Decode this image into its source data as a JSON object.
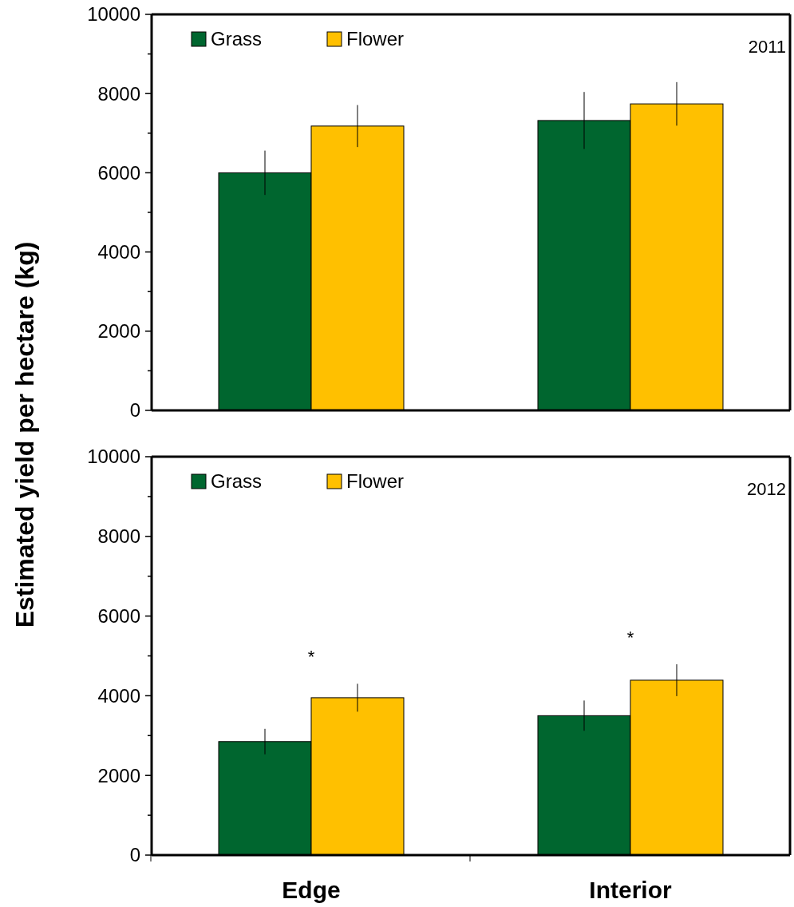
{
  "chart_data": [
    {
      "type": "bar",
      "ylabel": "Estimated yield per hectare (kg)",
      "categories": [
        null,
        null
      ],
      "series": [
        {
          "name": "Grass",
          "color": "#00662f",
          "values": [
            6000,
            7320
          ],
          "errors": [
            560,
            720
          ]
        },
        {
          "name": "Flower",
          "color": "#ffc000",
          "values": [
            7180,
            7740
          ],
          "errors": [
            530,
            550
          ]
        }
      ],
      "ylim": [
        0,
        10000
      ],
      "yticks": [
        0,
        {
          "value": 1000,
          "label": null
        },
        2000,
        {
          "value": 3000,
          "label": null
        },
        4000,
        {
          "value": 5000,
          "label": null
        },
        6000,
        {
          "value": 7000,
          "label": null
        },
        8000,
        {
          "value": 9000,
          "label": null
        },
        10000
      ],
      "annotations": [
        "2011"
      ],
      "legend": "top left",
      "grid": false,
      "tick_labels": "y"
    },
    {
      "type": "bar",
      "categories": [
        "Edge",
        "Interior"
      ],
      "series": [
        {
          "name": "Grass",
          "color": "#00662f",
          "values": [
            2850,
            3500
          ],
          "errors": [
            320,
            380
          ]
        },
        {
          "name": "Flower",
          "color": "#ffc000",
          "values": [
            3950,
            4390
          ],
          "errors": [
            350,
            400
          ]
        }
      ],
      "ylim": [
        0,
        10000
      ],
      "yticks": [
        0,
        {
          "value": 1000,
          "label": null
        },
        2000,
        {
          "value": 3000,
          "label": null
        },
        4000,
        {
          "value": 5000,
          "label": null
        },
        6000,
        {
          "value": 7000,
          "label": null
        },
        8000,
        {
          "value": 9000,
          "label": null
        },
        10000
      ],
      "annotations": [
        "2012",
        "*",
        "*"
      ],
      "legend": "top left",
      "grid": false
    }
  ]
}
